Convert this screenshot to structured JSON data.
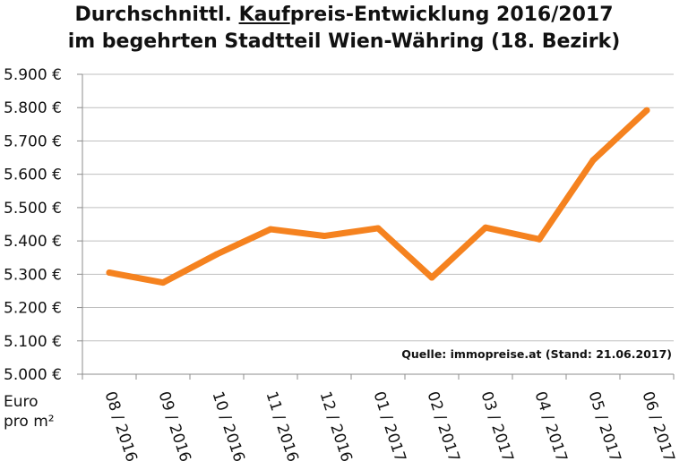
{
  "chart_data": {
    "type": "line",
    "title_parts": {
      "line1_prefix": "Durchschnittl. ",
      "line1_underlined": "Kauf",
      "line1_suffix": "preis-Entwicklung 2016/2017",
      "line2": "im begehrten Stadtteil Wien-Währing (18. Bezirk)"
    },
    "categories": [
      "08 / 2016",
      "09 / 2016",
      "10 / 2016",
      "11 / 2016",
      "12 / 2016",
      "01 / 2017",
      "02 / 2017",
      "03 / 2017",
      "04 / 2017",
      "05 / 2017",
      "06 / 2017"
    ],
    "values": [
      5305,
      5275,
      5360,
      5435,
      5415,
      5438,
      5290,
      5440,
      5405,
      5642,
      5792
    ],
    "ylim": [
      5000,
      5900
    ],
    "yticks": [
      5000,
      5100,
      5200,
      5300,
      5400,
      5500,
      5600,
      5700,
      5800,
      5900
    ],
    "ytick_labels": [
      "5.000 €",
      "5.100 €",
      "5.200 €",
      "5.300 €",
      "5.400 €",
      "5.500 €",
      "5.600 €",
      "5.700 €",
      "5.800 €",
      "5.900 €"
    ],
    "ylabel_line1": "Euro",
    "ylabel_line2": "pro m²",
    "annotation": "Quelle: immopreise.at (Stand: 21.06.2017)",
    "grid": true,
    "line_color": "#f5821f",
    "grid_color": "#bfbfbf",
    "axis_color": "#8c8c8c"
  }
}
